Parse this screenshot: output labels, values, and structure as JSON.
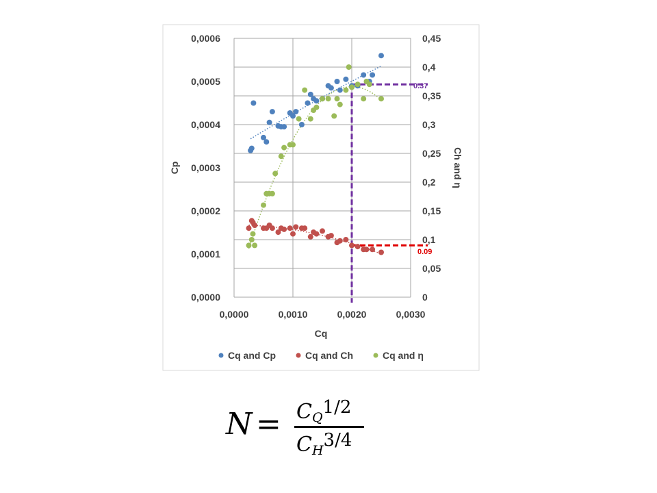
{
  "chart_data": {
    "type": "scatter",
    "title": "",
    "xlabel": "Cq",
    "ylabel_left": "Cp",
    "ylabel_right": "Ch and η",
    "xlim": [
      0,
      0.003
    ],
    "ylim_left": [
      0,
      0.0006
    ],
    "ylim_right": [
      0,
      0.45
    ],
    "x_ticks": [
      "0,0000",
      "0,0010",
      "0,0020",
      "0,0030"
    ],
    "y_left_ticks": [
      "0,0000",
      "0,0001",
      "0,0002",
      "0,0003",
      "0,0004",
      "0,0005",
      "0,0006"
    ],
    "y_right_ticks": [
      "0",
      "0,05",
      "0,1",
      "0,15",
      "0,2",
      "0,25",
      "0,3",
      "0,35",
      "0,4",
      "0,45"
    ],
    "grid": "vertical and horizontal major gridlines",
    "legend": {
      "position": "bottom",
      "entries": [
        "Cq and Cp",
        "Cq and Ch",
        "Cq and η"
      ]
    },
    "series": [
      {
        "name": "Cq and Cp",
        "axis": "left",
        "color": "#4f81bd",
        "trendline": "dotted",
        "x": [
          0.00028,
          0.0003,
          0.00033,
          0.0005,
          0.00055,
          0.0006,
          0.00065,
          0.00075,
          0.0008,
          0.00085,
          0.00095,
          0.001,
          0.00105,
          0.00115,
          0.00125,
          0.0013,
          0.00135,
          0.0014,
          0.0015,
          0.0016,
          0.00165,
          0.00175,
          0.0018,
          0.0019,
          0.002,
          0.0021,
          0.0022,
          0.0023,
          0.00235,
          0.0025
        ],
        "y": [
          0.00034,
          0.000345,
          0.00045,
          0.00037,
          0.00036,
          0.000405,
          0.00043,
          0.000397,
          0.000395,
          0.000395,
          0.000427,
          0.00042,
          0.00043,
          0.0004,
          0.00045,
          0.00047,
          0.00046,
          0.000455,
          0.00046,
          0.00049,
          0.000485,
          0.0005,
          0.00048,
          0.000505,
          0.00049,
          0.00049,
          0.000515,
          0.0005,
          0.000515,
          0.00056
        ]
      },
      {
        "name": "Cq and Ch",
        "axis": "right",
        "color": "#c0504d",
        "trendline": "dotted",
        "x": [
          0.00025,
          0.0003,
          0.00032,
          0.00035,
          0.0005,
          0.00055,
          0.0006,
          0.00065,
          0.00075,
          0.0008,
          0.00085,
          0.00095,
          0.001,
          0.00105,
          0.00115,
          0.0012,
          0.0013,
          0.00135,
          0.0014,
          0.0015,
          0.0016,
          0.00165,
          0.00175,
          0.0018,
          0.0019,
          0.002,
          0.0021,
          0.0022,
          0.00225,
          0.00235,
          0.0025
        ],
        "y": [
          0.12,
          0.133,
          0.13,
          0.125,
          0.12,
          0.12,
          0.125,
          0.12,
          0.113,
          0.12,
          0.118,
          0.12,
          0.11,
          0.122,
          0.12,
          0.12,
          0.105,
          0.113,
          0.11,
          0.115,
          0.105,
          0.107,
          0.095,
          0.098,
          0.1,
          0.09,
          0.088,
          0.083,
          0.083,
          0.083,
          0.078
        ]
      },
      {
        "name": "Cq and η",
        "axis": "right",
        "color": "#9bbb59",
        "trendline": "dotted",
        "x": [
          0.00025,
          0.0003,
          0.00032,
          0.00035,
          0.0005,
          0.00055,
          0.0006,
          0.00065,
          0.0007,
          0.0008,
          0.00085,
          0.00095,
          0.001,
          0.0011,
          0.0012,
          0.0013,
          0.00135,
          0.0014,
          0.0015,
          0.0016,
          0.0017,
          0.00175,
          0.0018,
          0.0019,
          0.00195,
          0.002,
          0.0021,
          0.0022,
          0.00225,
          0.0023,
          0.0025
        ],
        "y": [
          0.09,
          0.1,
          0.11,
          0.09,
          0.16,
          0.18,
          0.18,
          0.18,
          0.215,
          0.245,
          0.26,
          0.265,
          0.265,
          0.31,
          0.36,
          0.31,
          0.325,
          0.33,
          0.345,
          0.345,
          0.315,
          0.345,
          0.335,
          0.36,
          0.4,
          0.365,
          0.37,
          0.345,
          0.375,
          0.37,
          0.345
        ]
      }
    ],
    "annotations": [
      {
        "label": "0.37",
        "axis": "right",
        "y": 0.37,
        "x_from": 0.002,
        "color": "#7030a0"
      },
      {
        "label": "0.09",
        "axis": "right",
        "y": 0.09,
        "x_from": 0.002,
        "color": "#e00000"
      }
    ],
    "marker_x": 0.002,
    "marker_color": "#7030a0"
  },
  "formula": {
    "lhs": "N",
    "equals": "=",
    "num_base": "C",
    "num_sub": "Q",
    "num_exp": "1/2",
    "den_base": "C",
    "den_sub": "H",
    "den_exp": "3/4"
  }
}
